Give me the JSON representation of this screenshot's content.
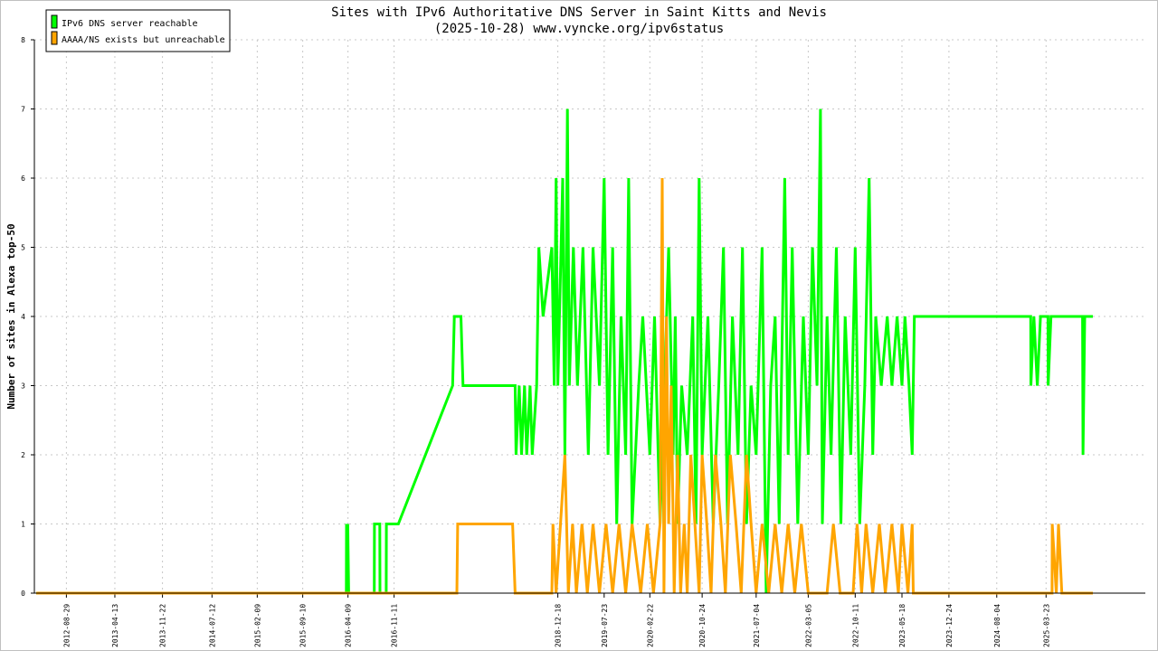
{
  "chart_data": {
    "type": "line",
    "title": "Sites with IPv6 Authoritative DNS Server in Saint Kitts and Nevis",
    "subtitle": "(2025-10-28) www.vyncke.org/ipv6status",
    "ylabel": "Number of sites in Alexa top-50",
    "xlabel": "",
    "ylim": [
      0,
      8
    ],
    "xlim": [
      "2012-04-01",
      "2026-07-01"
    ],
    "grid": true,
    "legend_position": "top-left",
    "yticks": [
      "0",
      "1",
      "2",
      "3",
      "4",
      "5",
      "6",
      "7",
      "8"
    ],
    "xticks": [
      "2012-08-29",
      "2013-04-13",
      "2013-11-22",
      "2014-07-12",
      "2015-02-09",
      "2015-09-10",
      "2016-04-09",
      "2016-11-11",
      "2018-12-18",
      "2019-07-23",
      "2020-02-22",
      "2020-10-24",
      "2021-07-04",
      "2022-03-05",
      "2022-10-11",
      "2023-05-18",
      "2023-12-24",
      "2024-08-04",
      "2025-03-23"
    ],
    "series": [
      {
        "name": "IPv6 DNS server reachable",
        "color": "#00ff00",
        "points": [
          [
            "2012-04-10",
            0
          ],
          [
            "2016-04-01",
            0
          ],
          [
            "2016-04-02",
            1
          ],
          [
            "2016-04-05",
            0
          ],
          [
            "2016-04-08",
            1
          ],
          [
            "2016-04-12",
            0
          ],
          [
            "2016-08-10",
            0
          ],
          [
            "2016-08-11",
            1
          ],
          [
            "2016-09-05",
            1
          ],
          [
            "2016-09-06",
            0
          ],
          [
            "2016-10-05",
            0
          ],
          [
            "2016-10-06",
            1
          ],
          [
            "2016-12-01",
            1
          ],
          [
            "2017-08-12",
            3
          ],
          [
            "2017-08-20",
            4
          ],
          [
            "2017-09-20",
            4
          ],
          [
            "2017-09-30",
            3
          ],
          [
            "2018-06-01",
            3
          ],
          [
            "2018-06-05",
            2
          ],
          [
            "2018-06-20",
            3
          ],
          [
            "2018-07-01",
            2
          ],
          [
            "2018-07-15",
            3
          ],
          [
            "2018-07-25",
            2
          ],
          [
            "2018-08-10",
            3
          ],
          [
            "2018-08-20",
            2
          ],
          [
            "2018-09-10",
            3
          ],
          [
            "2018-09-15",
            4
          ],
          [
            "2018-09-20",
            5
          ],
          [
            "2018-10-10",
            4
          ],
          [
            "2018-11-20",
            5
          ],
          [
            "2018-12-01",
            3
          ],
          [
            "2018-12-10",
            6
          ],
          [
            "2018-12-18",
            3
          ],
          [
            "2019-01-10",
            6
          ],
          [
            "2019-01-20",
            2
          ],
          [
            "2019-02-01",
            7
          ],
          [
            "2019-02-10",
            3
          ],
          [
            "2019-03-01",
            5
          ],
          [
            "2019-03-20",
            3
          ],
          [
            "2019-04-15",
            5
          ],
          [
            "2019-05-10",
            2
          ],
          [
            "2019-06-01",
            5
          ],
          [
            "2019-07-01",
            3
          ],
          [
            "2019-07-23",
            6
          ],
          [
            "2019-08-10",
            2
          ],
          [
            "2019-09-01",
            5
          ],
          [
            "2019-09-20",
            1
          ],
          [
            "2019-10-10",
            4
          ],
          [
            "2019-11-01",
            2
          ],
          [
            "2019-11-15",
            6
          ],
          [
            "2019-12-01",
            1
          ],
          [
            "2020-01-01",
            3
          ],
          [
            "2020-01-20",
            4
          ],
          [
            "2020-02-22",
            2
          ],
          [
            "2020-03-15",
            4
          ],
          [
            "2020-04-10",
            1
          ],
          [
            "2020-05-01",
            3
          ],
          [
            "2020-05-20",
            5
          ],
          [
            "2020-06-10",
            2
          ],
          [
            "2020-06-20",
            4
          ],
          [
            "2020-07-01",
            1
          ],
          [
            "2020-07-20",
            3
          ],
          [
            "2020-08-15",
            2
          ],
          [
            "2020-09-10",
            4
          ],
          [
            "2020-09-25",
            1
          ],
          [
            "2020-10-10",
            6
          ],
          [
            "2020-10-24",
            2
          ],
          [
            "2020-11-20",
            4
          ],
          [
            "2020-12-15",
            1
          ],
          [
            "2021-01-10",
            3
          ],
          [
            "2021-02-01",
            5
          ],
          [
            "2021-02-20",
            1
          ],
          [
            "2021-03-15",
            4
          ],
          [
            "2021-04-10",
            2
          ],
          [
            "2021-05-01",
            5
          ],
          [
            "2021-05-20",
            1
          ],
          [
            "2021-06-10",
            3
          ],
          [
            "2021-07-04",
            2
          ],
          [
            "2021-08-01",
            5
          ],
          [
            "2021-08-20",
            0
          ],
          [
            "2021-09-10",
            3
          ],
          [
            "2021-10-01",
            4
          ],
          [
            "2021-10-20",
            1
          ],
          [
            "2021-11-15",
            6
          ],
          [
            "2021-12-01",
            2
          ],
          [
            "2021-12-20",
            5
          ],
          [
            "2022-01-15",
            1
          ],
          [
            "2022-02-10",
            4
          ],
          [
            "2022-03-05",
            2
          ],
          [
            "2022-03-25",
            5
          ],
          [
            "2022-04-15",
            3
          ],
          [
            "2022-05-01",
            7
          ],
          [
            "2022-05-10",
            1
          ],
          [
            "2022-06-01",
            4
          ],
          [
            "2022-06-20",
            2
          ],
          [
            "2022-07-15",
            5
          ],
          [
            "2022-08-05",
            1
          ],
          [
            "2022-08-25",
            4
          ],
          [
            "2022-09-20",
            2
          ],
          [
            "2022-10-11",
            5
          ],
          [
            "2022-11-01",
            1
          ],
          [
            "2022-11-25",
            3
          ],
          [
            "2022-12-15",
            6
          ],
          [
            "2023-01-01",
            2
          ],
          [
            "2023-01-15",
            4
          ],
          [
            "2023-02-10",
            3
          ],
          [
            "2023-03-10",
            4
          ],
          [
            "2023-04-01",
            3
          ],
          [
            "2023-04-25",
            4
          ],
          [
            "2023-05-18",
            3
          ],
          [
            "2023-06-01",
            4
          ],
          [
            "2023-06-20",
            3
          ],
          [
            "2023-07-05",
            2
          ],
          [
            "2023-07-15",
            4
          ],
          [
            "2025-01-10",
            4
          ],
          [
            "2025-01-11",
            3
          ],
          [
            "2025-01-25",
            4
          ],
          [
            "2025-02-10",
            3
          ],
          [
            "2025-02-25",
            4
          ],
          [
            "2025-04-01",
            4
          ],
          [
            "2025-04-02",
            3
          ],
          [
            "2025-04-15",
            4
          ],
          [
            "2025-09-10",
            4
          ],
          [
            "2025-09-12",
            2
          ],
          [
            "2025-09-20",
            4
          ],
          [
            "2025-10-28",
            4
          ]
        ]
      },
      {
        "name": "AAAA/NS exists but unreachable",
        "color": "#ffa500",
        "points": [
          [
            "2012-04-10",
            0
          ],
          [
            "2017-09-01",
            0
          ],
          [
            "2017-09-05",
            1
          ],
          [
            "2018-05-20",
            1
          ],
          [
            "2018-06-01",
            0
          ],
          [
            "2018-11-20",
            0
          ],
          [
            "2018-11-25",
            1
          ],
          [
            "2018-12-10",
            0
          ],
          [
            "2019-01-20",
            2
          ],
          [
            "2019-02-05",
            0
          ],
          [
            "2019-02-25",
            1
          ],
          [
            "2019-03-15",
            0
          ],
          [
            "2019-04-10",
            1
          ],
          [
            "2019-05-05",
            0
          ],
          [
            "2019-06-01",
            1
          ],
          [
            "2019-07-01",
            0
          ],
          [
            "2019-08-01",
            1
          ],
          [
            "2019-09-01",
            0
          ],
          [
            "2019-10-01",
            1
          ],
          [
            "2019-11-01",
            0
          ],
          [
            "2019-12-01",
            1
          ],
          [
            "2020-01-10",
            0
          ],
          [
            "2020-02-10",
            1
          ],
          [
            "2020-03-10",
            0
          ],
          [
            "2020-04-10",
            1
          ],
          [
            "2020-04-20",
            6
          ],
          [
            "2020-04-28",
            0
          ],
          [
            "2020-05-10",
            4
          ],
          [
            "2020-05-20",
            1
          ],
          [
            "2020-06-01",
            3
          ],
          [
            "2020-06-15",
            0
          ],
          [
            "2020-07-01",
            2
          ],
          [
            "2020-07-15",
            0
          ],
          [
            "2020-08-01",
            1
          ],
          [
            "2020-08-15",
            0
          ],
          [
            "2020-09-01",
            2
          ],
          [
            "2020-09-20",
            1
          ],
          [
            "2020-10-10",
            0
          ],
          [
            "2020-10-24",
            2
          ],
          [
            "2020-11-15",
            1
          ],
          [
            "2020-12-05",
            0
          ],
          [
            "2020-12-25",
            2
          ],
          [
            "2021-01-20",
            1
          ],
          [
            "2021-02-10",
            0
          ],
          [
            "2021-03-05",
            2
          ],
          [
            "2021-04-01",
            1
          ],
          [
            "2021-04-25",
            0
          ],
          [
            "2021-05-20",
            2
          ],
          [
            "2021-06-10",
            1
          ],
          [
            "2021-07-04",
            0
          ],
          [
            "2021-08-01",
            1
          ],
          [
            "2021-09-01",
            0
          ],
          [
            "2021-10-01",
            1
          ],
          [
            "2021-11-01",
            0
          ],
          [
            "2021-12-01",
            1
          ],
          [
            "2022-01-01",
            0
          ],
          [
            "2022-02-01",
            1
          ],
          [
            "2022-03-05",
            0
          ],
          [
            "2022-06-01",
            0
          ],
          [
            "2022-07-01",
            1
          ],
          [
            "2022-08-01",
            0
          ],
          [
            "2022-10-01",
            0
          ],
          [
            "2022-10-20",
            1
          ],
          [
            "2022-11-10",
            0
          ],
          [
            "2022-12-01",
            1
          ],
          [
            "2023-01-01",
            0
          ],
          [
            "2023-02-01",
            1
          ],
          [
            "2023-03-01",
            0
          ],
          [
            "2023-04-01",
            1
          ],
          [
            "2023-05-01",
            0
          ],
          [
            "2023-05-18",
            1
          ],
          [
            "2023-06-15",
            0
          ],
          [
            "2023-07-05",
            1
          ],
          [
            "2023-07-10",
            0
          ],
          [
            "2025-04-20",
            0
          ],
          [
            "2025-04-21",
            1
          ],
          [
            "2025-05-10",
            0
          ],
          [
            "2025-05-20",
            1
          ],
          [
            "2025-06-05",
            0
          ],
          [
            "2025-10-28",
            0
          ]
        ]
      }
    ]
  }
}
